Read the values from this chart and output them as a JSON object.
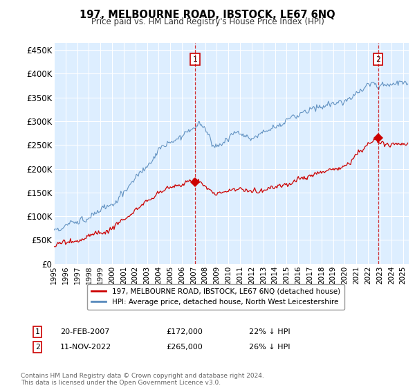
{
  "title": "197, MELBOURNE ROAD, IBSTOCK, LE67 6NQ",
  "subtitle": "Price paid vs. HM Land Registry's House Price Index (HPI)",
  "ylabel_ticks": [
    "£0",
    "£50K",
    "£100K",
    "£150K",
    "£200K",
    "£250K",
    "£300K",
    "£350K",
    "£400K",
    "£450K"
  ],
  "ytick_values": [
    0,
    50000,
    100000,
    150000,
    200000,
    250000,
    300000,
    350000,
    400000,
    450000
  ],
  "ylim": [
    0,
    465000
  ],
  "xlim_start": 1995.0,
  "xlim_end": 2025.5,
  "red_color": "#cc0000",
  "blue_color": "#5588bb",
  "bg_color": "#ddeeff",
  "sale1_x": 2007.12,
  "sale1_y": 172000,
  "sale2_x": 2022.87,
  "sale2_y": 265000,
  "sale1_label": "20-FEB-2007",
  "sale1_price": "£172,000",
  "sale1_hpi": "22% ↓ HPI",
  "sale2_label": "11-NOV-2022",
  "sale2_price": "£265,000",
  "sale2_hpi": "26% ↓ HPI",
  "legend_line1": "197, MELBOURNE ROAD, IBSTOCK, LE67 6NQ (detached house)",
  "legend_line2": "HPI: Average price, detached house, North West Leicestershire",
  "footer": "Contains HM Land Registry data © Crown copyright and database right 2024.\nThis data is licensed under the Open Government Licence v3.0.",
  "xtick_years": [
    1995,
    1996,
    1997,
    1998,
    1999,
    2000,
    2001,
    2002,
    2003,
    2004,
    2005,
    2006,
    2007,
    2008,
    2009,
    2010,
    2011,
    2012,
    2013,
    2014,
    2015,
    2016,
    2017,
    2018,
    2019,
    2020,
    2021,
    2022,
    2023,
    2024,
    2025
  ]
}
